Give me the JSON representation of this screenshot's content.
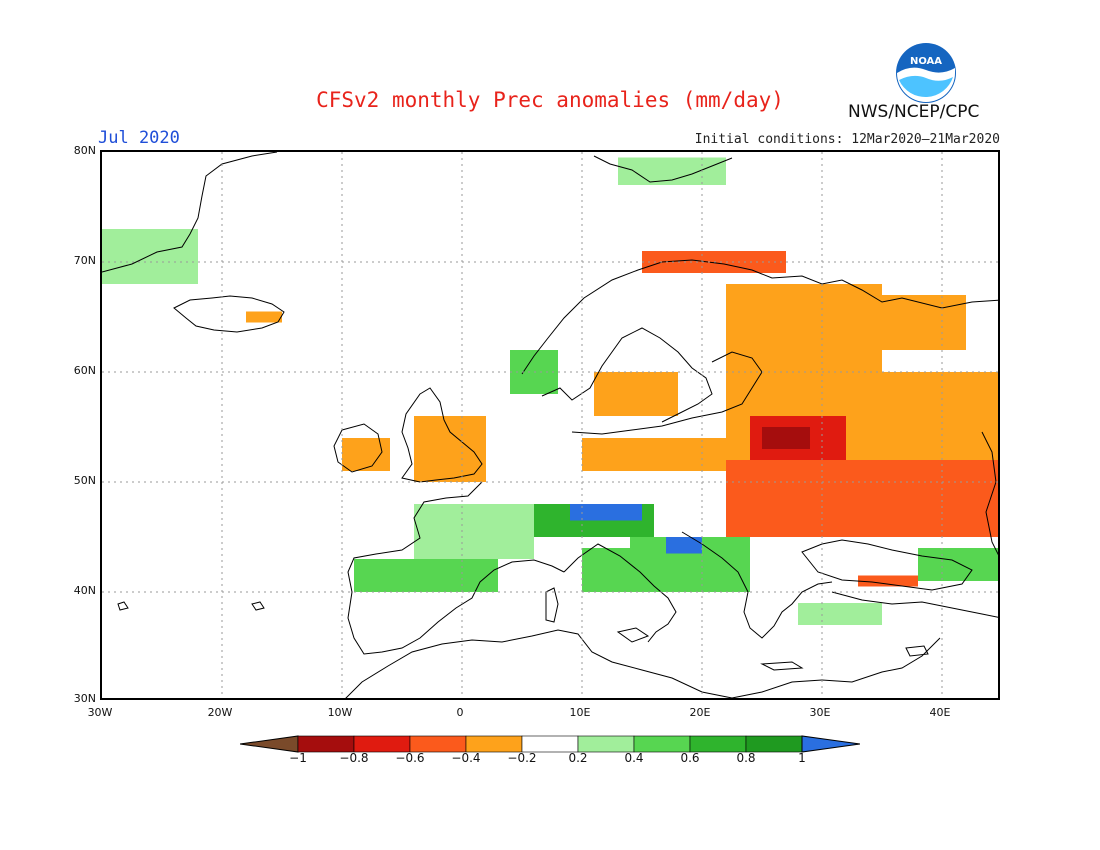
{
  "title": "CFSv2 monthly Prec anomalies (mm/day)",
  "month_label": "Jul 2020",
  "initial_conditions": "Initial conditions: 12Mar2020–21Mar2020",
  "agency": "NWS/NCEP/CPC",
  "logo_text": "NOAA",
  "map": {
    "projection": "lat-lon",
    "lon_range": [
      -30,
      45
    ],
    "lat_range": [
      30,
      80
    ],
    "grid": true,
    "lat_labels": [
      "80N",
      "70N",
      "60N",
      "50N",
      "40N",
      "30N"
    ],
    "lon_labels": [
      "30W",
      "20W",
      "10W",
      "0",
      "10E",
      "20E",
      "30E",
      "40E"
    ]
  },
  "colorbar": {
    "ticks": [
      "−1",
      "−0.8",
      "−0.6",
      "−0.4",
      "−0.2",
      "0.2",
      "0.4",
      "0.6",
      "0.8",
      "1"
    ],
    "colors": {
      "lt_-1": "#7a4a2a",
      "-1_-0.8": "#a50d0d",
      "-0.8_-0.6": "#e01b10",
      "-0.6_-0.4": "#fb5a1c",
      "-0.4_-0.2": "#fea21b",
      "-0.2_0.2": "#ffffff",
      "0.2_0.4": "#a1ee9b",
      "0.4_0.6": "#57d651",
      "0.6_0.8": "#2fb42d",
      "0.8_1": "#1f9a20",
      "gt_1": "#2a6fe0"
    }
  },
  "anomaly_regions": [
    {
      "name": "Greenland coast",
      "lon": [
        -30,
        -22
      ],
      "lat": [
        68,
        73
      ],
      "value": 0.35
    },
    {
      "name": "Iceland",
      "lon": [
        -18,
        -15
      ],
      "lat": [
        64.5,
        65.5
      ],
      "value": -0.3
    },
    {
      "name": "Svalbard",
      "lon": [
        13,
        22
      ],
      "lat": [
        77,
        79.5
      ],
      "value": 0.3
    },
    {
      "name": "Northern Norway coast",
      "lon": [
        15,
        27
      ],
      "lat": [
        69,
        71
      ],
      "value": -0.6
    },
    {
      "name": "Southwest Norway",
      "lon": [
        4,
        8
      ],
      "lat": [
        58,
        62
      ],
      "value": 0.4
    },
    {
      "name": "Southern Sweden",
      "lon": [
        11,
        18
      ],
      "lat": [
        56,
        60
      ],
      "value": -0.3
    },
    {
      "name": "Ireland",
      "lon": [
        -10,
        -6
      ],
      "lat": [
        51,
        54
      ],
      "value": -0.3
    },
    {
      "name": "Great Britain",
      "lon": [
        -4,
        2
      ],
      "lat": [
        50,
        56
      ],
      "value": -0.3
    },
    {
      "name": "Finland and Karelia",
      "lon": [
        22,
        35
      ],
      "lat": [
        60,
        68
      ],
      "value": -0.3
    },
    {
      "name": "Northwest Russia",
      "lon": [
        30,
        42
      ],
      "lat": [
        62,
        67
      ],
      "value": -0.35
    },
    {
      "name": "Baltic to western Russia",
      "lon": [
        22,
        45
      ],
      "lat": [
        52,
        60
      ],
      "value": -0.4
    },
    {
      "name": "Belarus",
      "lon": [
        24,
        32
      ],
      "lat": [
        52,
        56
      ],
      "value": -0.7
    },
    {
      "name": "Belarus core",
      "lon": [
        25,
        29
      ],
      "lat": [
        53,
        55
      ],
      "value": -0.85
    },
    {
      "name": "Ukraine and southern Russia",
      "lon": [
        22,
        45
      ],
      "lat": [
        45,
        52
      ],
      "value": -0.45
    },
    {
      "name": "Northern Germany and Poland",
      "lon": [
        10,
        22
      ],
      "lat": [
        51,
        54
      ],
      "value": -0.3
    },
    {
      "name": "France",
      "lon": [
        -4,
        6
      ],
      "lat": [
        43,
        48
      ],
      "value": 0.35
    },
    {
      "name": "Alps",
      "lon": [
        6,
        16
      ],
      "lat": [
        45,
        48
      ],
      "value": 0.6
    },
    {
      "name": "Austria",
      "lon": [
        9,
        15
      ],
      "lat": [
        46.5,
        48
      ],
      "value": 1.1
    },
    {
      "name": "Northern Iberia",
      "lon": [
        -9,
        3
      ],
      "lat": [
        40,
        43
      ],
      "value": 0.55
    },
    {
      "name": "Italy",
      "lon": [
        10,
        16
      ],
      "lat": [
        40,
        44
      ],
      "value": 0.45
    },
    {
      "name": "Balkans",
      "lon": [
        14,
        24
      ],
      "lat": [
        40,
        45
      ],
      "value": 0.55
    },
    {
      "name": "Croatia",
      "lon": [
        17,
        20
      ],
      "lat": [
        43.5,
        45
      ],
      "value": 1.1
    },
    {
      "name": "Northern Turkey",
      "lon": [
        33,
        38
      ],
      "lat": [
        40.5,
        41.5
      ],
      "value": -0.6
    },
    {
      "name": "Southern Turkey",
      "lon": [
        28,
        35
      ],
      "lat": [
        37,
        39
      ],
      "value": 0.35
    },
    {
      "name": "Caucasus",
      "lon": [
        38,
        45
      ],
      "lat": [
        41,
        44
      ],
      "value": 0.5
    }
  ]
}
